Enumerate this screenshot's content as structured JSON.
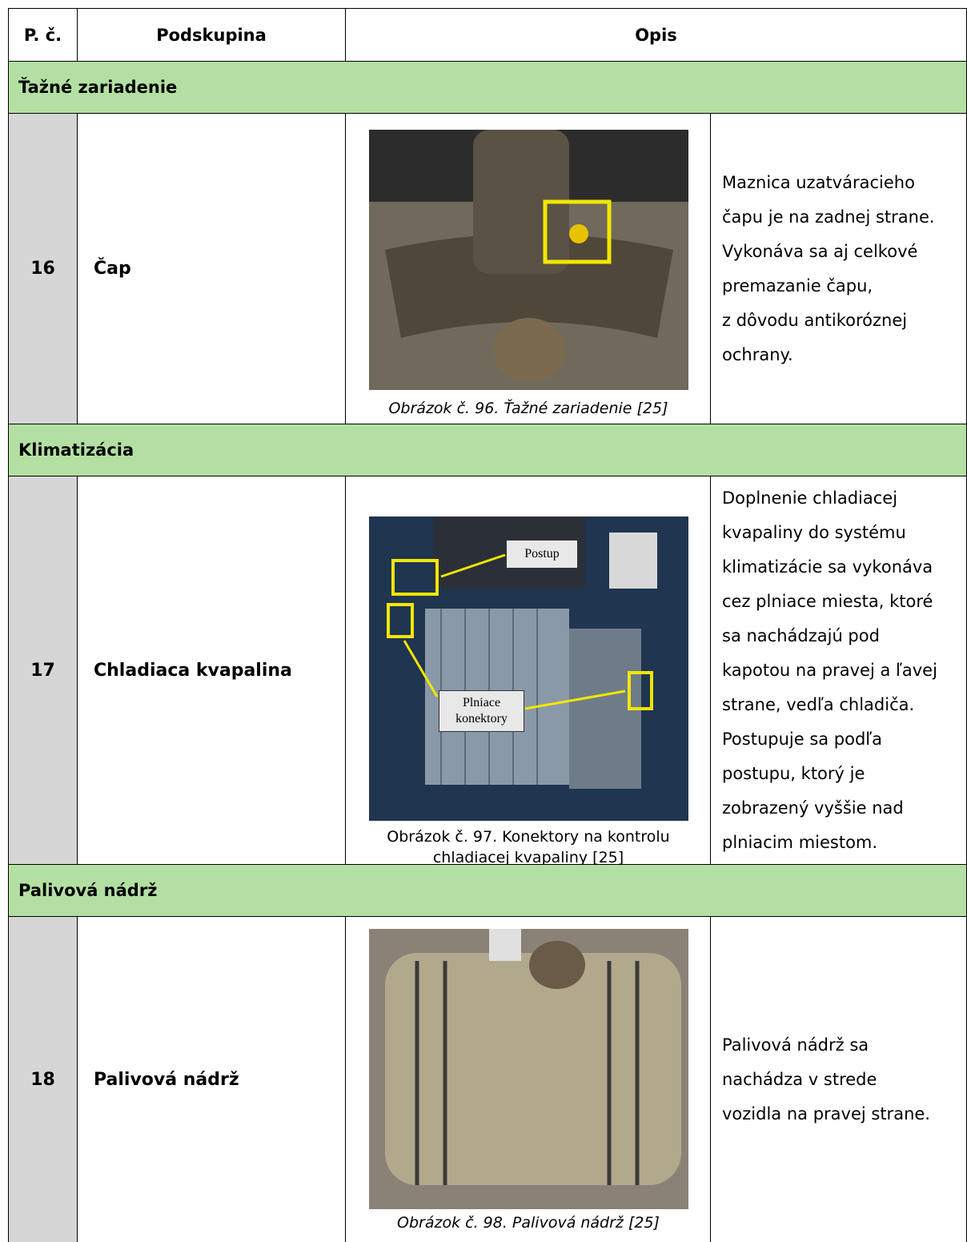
{
  "table": {
    "header": [
      "P. č.",
      "Podskupina",
      "Opis"
    ],
    "sections": [
      {
        "title": "Ťažné zariadenie",
        "rows": [
          {
            "number": "16",
            "name": "Čap",
            "figure": {
              "caption": "Obrázok č. 96. Ťažné zariadenie [25]",
              "labels": []
            },
            "description": [
              "Maznica uzatváracieho",
              "čapu je na zadnej strane.",
              "Vykonáva sa aj celkové",
              "premazanie čapu,",
              "z dôvodu antikoróznej",
              "ochrany."
            ]
          }
        ]
      },
      {
        "title": "Klimatizácia",
        "rows": [
          {
            "number": "17",
            "name": "Chladiaca kvapalina",
            "figure": {
              "caption": "Obrázok č. 97. Konektory na kontrolu chladiacej kvapaliny [25]",
              "labels": [
                "Postup",
                "Plniace konektory"
              ]
            },
            "description": [
              "Doplnenie chladiacej",
              "kvapaliny do systému",
              "klimatizácie sa vykonáva",
              "cez plniace miesta, ktoré",
              "sa nachádzajú pod",
              "kapotou na pravej a ľavej",
              "strane, vedľa chladiča.",
              "Postupuje sa podľa",
              "postupu, ktorý je",
              "zobrazený vyššie nad",
              "plniacim miestom."
            ]
          }
        ]
      },
      {
        "title": "Palivová nádrž",
        "rows": [
          {
            "number": "18",
            "name": "Palivová nádrž",
            "figure": {
              "caption": "Obrázok č. 98. Palivová nádrž [25]",
              "labels": []
            },
            "description": [
              "Palivová nádrž sa",
              "nachádza v strede",
              "vozidla na pravej strane."
            ]
          }
        ]
      }
    ]
  }
}
